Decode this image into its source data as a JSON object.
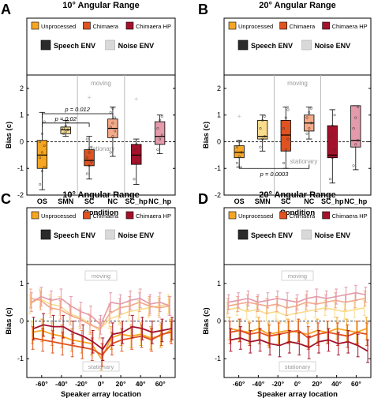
{
  "colors": {
    "unprocessed": "#f5a623",
    "chimaera": "#e0521f",
    "chimaera_hp": "#a3122a",
    "speech_env": "#2b2b2b",
    "noise_env": "#d9d9d9",
    "noise_unprocessed": "#f9dc8c",
    "noise_chimaera": "#f4a988",
    "noise_chimaera_hp": "#e39aaa"
  },
  "legend": {
    "unprocessed": "Unprocessed",
    "chimaera": "Chimaera",
    "chimaera_hp": "Chimaera HP",
    "speech_env": "Speech ENV",
    "noise_env": "Noise ENV"
  },
  "chart_data": [
    {
      "panel_letter": "A",
      "type": "box",
      "title": "10° Angular Range",
      "xlabel": "Condition",
      "ylabel": "Bias (c)",
      "ylim": [
        -2,
        2.5
      ],
      "yticks": [
        "-2",
        "-1",
        "0",
        "1",
        "2"
      ],
      "categories": [
        "OS",
        "SMN",
        "SC",
        "NC",
        "SC_hp",
        "NC_hp"
      ],
      "region_labels": {
        "upper": "moving",
        "lower": "stationary"
      },
      "annotations": [
        "p = 0.012",
        "p = 0.02"
      ],
      "boxes": [
        {
          "category": "OS",
          "whisker_low": -1.8,
          "q1": -1.0,
          "median": -0.5,
          "q3": 0.05,
          "whisker_high": 1.1,
          "env": "speech",
          "processing": "unprocessed",
          "points": [
            -1.6,
            -1.1,
            -0.95,
            -0.6,
            -0.4,
            -0.15,
            0.0,
            0.3,
            0.75
          ],
          "outliers": []
        },
        {
          "category": "SMN",
          "whisker_low": 0.2,
          "q1": 0.3,
          "median": 0.45,
          "q3": 0.55,
          "whisker_high": 0.8,
          "env": "noise",
          "processing": "unprocessed",
          "points": [
            0.3,
            0.38,
            0.45,
            0.5,
            0.6,
            0.75
          ],
          "outliers": []
        },
        {
          "category": "SC",
          "whisker_low": -1.4,
          "q1": -0.9,
          "median": -0.7,
          "q3": -0.3,
          "whisker_high": 0.2,
          "env": "speech",
          "processing": "chimaera",
          "points": [
            -1.2,
            -0.9,
            -0.75,
            -0.6,
            -0.4,
            -0.2,
            0.1
          ],
          "outliers": [
            1.65
          ]
        },
        {
          "category": "NC",
          "whisker_low": -0.55,
          "q1": 0.15,
          "median": 0.5,
          "q3": 0.85,
          "whisker_high": 1.3,
          "env": "noise",
          "processing": "chimaera",
          "points": [
            -0.4,
            0.2,
            0.4,
            0.55,
            0.7,
            0.9,
            1.1,
            1.25
          ],
          "outliers": []
        },
        {
          "category": "SC_hp",
          "whisker_low": -1.6,
          "q1": -0.85,
          "median": -0.5,
          "q3": -0.1,
          "whisker_high": 0.1,
          "env": "speech",
          "processing": "chimaera_hp",
          "points": [
            -1.4,
            -0.8,
            -0.55,
            -0.3,
            -0.1
          ],
          "outliers": [
            1.6
          ]
        },
        {
          "category": "NC_hp",
          "whisker_low": -0.45,
          "q1": -0.1,
          "median": 0.2,
          "q3": 0.75,
          "whisker_high": 1.0,
          "env": "noise",
          "processing": "chimaera_hp",
          "points": [
            -0.3,
            0.1,
            0.25,
            0.5,
            0.8,
            0.95
          ],
          "outliers": []
        }
      ]
    },
    {
      "panel_letter": "B",
      "type": "box",
      "title": "20° Angular Range",
      "xlabel": "Condition",
      "ylabel": "Bias (c)",
      "ylim": [
        -2,
        2.5
      ],
      "yticks": [
        "-2",
        "-1",
        "0",
        "1",
        "2"
      ],
      "categories": [
        "OS",
        "SMN",
        "SC",
        "NC",
        "SC_hp",
        "NC_hp"
      ],
      "region_labels": {
        "upper": "moving",
        "lower": "stationary"
      },
      "annotations": [
        "p = 0.0003"
      ],
      "boxes": [
        {
          "category": "OS",
          "whisker_low": -0.95,
          "q1": -0.6,
          "median": -0.4,
          "q3": -0.15,
          "whisker_high": 0.05,
          "env": "speech",
          "processing": "unprocessed",
          "points": [
            -0.8,
            -0.55,
            -0.4,
            -0.2,
            0.0
          ],
          "outliers": [
            0.95
          ]
        },
        {
          "category": "SMN",
          "whisker_low": -0.35,
          "q1": 0.1,
          "median": 0.2,
          "q3": 0.8,
          "whisker_high": 1.0,
          "env": "noise",
          "processing": "unprocessed",
          "points": [
            -0.2,
            0.1,
            0.2,
            0.5,
            0.8,
            0.95
          ],
          "outliers": []
        },
        {
          "category": "SC",
          "whisker_low": -1.0,
          "q1": -0.35,
          "median": 0.25,
          "q3": 0.8,
          "whisker_high": 1.3,
          "env": "speech",
          "processing": "chimaera",
          "points": [
            -0.8,
            -0.3,
            0.1,
            0.5,
            0.9,
            1.2
          ],
          "outliers": []
        },
        {
          "category": "NC",
          "whisker_low": 0.1,
          "q1": 0.4,
          "median": 0.7,
          "q3": 1.0,
          "whisker_high": 1.3,
          "env": "noise",
          "processing": "chimaera",
          "points": [
            0.3,
            0.5,
            0.7,
            0.9,
            1.1,
            1.25
          ],
          "outliers": []
        },
        {
          "category": "SC_hp",
          "whisker_low": -1.55,
          "q1": -0.6,
          "median": -0.5,
          "q3": 0.6,
          "whisker_high": 1.2,
          "env": "speech",
          "processing": "chimaera_hp",
          "points": [
            -1.4,
            -0.6,
            -0.3,
            0.2,
            0.6,
            1.0
          ],
          "outliers": []
        },
        {
          "category": "NC_hp",
          "whisker_low": -1.05,
          "q1": -0.2,
          "median": 0.05,
          "q3": 1.35,
          "whisker_high": 1.35,
          "env": "noise",
          "processing": "chimaera_hp",
          "points": [
            -0.9,
            -0.1,
            0.05,
            0.5,
            0.9,
            1.3
          ],
          "outliers": []
        }
      ]
    },
    {
      "panel_letter": "C",
      "type": "line",
      "title": "10° Angular Range",
      "xlabel": "Speaker array location",
      "ylabel": "Bias (c)",
      "ylim": [
        -1.5,
        1.5
      ],
      "yticks": [
        "-1",
        "0",
        "1"
      ],
      "x": [
        -70,
        -60,
        -50,
        -40,
        -30,
        -20,
        -10,
        0,
        10,
        20,
        30,
        40,
        50,
        60,
        70
      ],
      "xtick_values": [
        -60,
        -40,
        -20,
        0,
        20,
        40,
        60
      ],
      "xtick_labels": [
        "-60°",
        "-40°",
        "-20°",
        "0°",
        "20°",
        "40°",
        "60°"
      ],
      "region_labels": {
        "upper": "moving",
        "lower": "stationary"
      },
      "series": [
        {
          "env": "noise",
          "processing": "unprocessed",
          "error": 0.25,
          "values": [
            0.45,
            0.6,
            0.45,
            0.4,
            0.2,
            0.1,
            -0.05,
            -0.25,
            0.05,
            0.15,
            0.25,
            0.3,
            0.35,
            0.4,
            0.45
          ]
        },
        {
          "env": "noise",
          "processing": "chimaera",
          "error": 0.25,
          "values": [
            0.6,
            0.55,
            0.35,
            0.3,
            0.15,
            0.05,
            -0.1,
            -0.2,
            0.2,
            0.35,
            0.4,
            0.5,
            0.4,
            0.35,
            0.4
          ]
        },
        {
          "env": "noise",
          "processing": "chimaera_hp",
          "error": 0.25,
          "values": [
            0.5,
            0.65,
            0.55,
            0.6,
            0.4,
            0.25,
            0.15,
            -0.1,
            0.5,
            0.45,
            0.55,
            0.6,
            0.45,
            0.5,
            0.4
          ]
        },
        {
          "env": "speech",
          "processing": "unprocessed",
          "error": 0.3,
          "values": [
            -0.3,
            -0.25,
            -0.35,
            -0.4,
            -0.5,
            -0.55,
            -0.6,
            -1.0,
            -0.45,
            -0.35,
            -0.4,
            -0.35,
            -0.45,
            -0.4,
            -0.25
          ]
        },
        {
          "env": "speech",
          "processing": "chimaera",
          "error": 0.3,
          "values": [
            -0.45,
            -0.5,
            -0.55,
            -0.6,
            -0.65,
            -0.7,
            -0.75,
            -0.9,
            -0.6,
            -0.5,
            -0.45,
            -0.4,
            -0.5,
            -0.35,
            -0.3
          ]
        },
        {
          "env": "speech",
          "processing": "chimaera_hp",
          "error": 0.3,
          "values": [
            -0.2,
            -0.1,
            -0.15,
            -0.15,
            -0.3,
            -0.4,
            -0.55,
            -0.75,
            -0.35,
            -0.3,
            -0.15,
            -0.2,
            -0.3,
            -0.25,
            -0.2
          ]
        }
      ]
    },
    {
      "panel_letter": "D",
      "type": "line",
      "title": "20° Angular Range",
      "xlabel": "Speaker array location",
      "ylabel": "Bias (c)",
      "ylim": [
        -1.5,
        1.5
      ],
      "yticks": [
        "-1",
        "0",
        "1"
      ],
      "x": [
        -70,
        -60,
        -50,
        -40,
        -30,
        -20,
        -10,
        0,
        10,
        20,
        30,
        40,
        50,
        60,
        70
      ],
      "xtick_values": [
        -60,
        -40,
        -20,
        0,
        20,
        40,
        60
      ],
      "xtick_labels": [
        "-60°",
        "-40°",
        "-20°",
        "0°",
        "20°",
        "40°",
        "60°"
      ],
      "region_labels": {
        "upper": "moving",
        "lower": "stationary"
      },
      "series": [
        {
          "env": "noise",
          "processing": "unprocessed",
          "error": 0.2,
          "values": [
            0.3,
            0.35,
            0.25,
            0.3,
            0.2,
            0.25,
            0.15,
            0.2,
            0.25,
            0.3,
            0.35,
            0.3,
            0.25,
            0.3,
            0.35
          ]
        },
        {
          "env": "noise",
          "processing": "chimaera",
          "error": 0.2,
          "values": [
            0.4,
            0.45,
            0.5,
            0.45,
            0.4,
            0.45,
            0.35,
            0.4,
            0.5,
            0.45,
            0.5,
            0.55,
            0.5,
            0.55,
            0.6
          ]
        },
        {
          "env": "noise",
          "processing": "chimaera_hp",
          "error": 0.2,
          "values": [
            0.5,
            0.55,
            0.6,
            0.5,
            0.55,
            0.6,
            0.55,
            0.5,
            0.6,
            0.65,
            0.6,
            0.65,
            0.7,
            0.75,
            0.7
          ]
        },
        {
          "env": "speech",
          "processing": "unprocessed",
          "error": 0.3,
          "values": [
            -0.2,
            -0.25,
            -0.3,
            -0.2,
            -0.35,
            -0.3,
            -0.25,
            -0.3,
            -0.35,
            -0.25,
            -0.3,
            -0.2,
            -0.25,
            -0.3,
            -0.2
          ]
        },
        {
          "env": "speech",
          "processing": "chimaera",
          "error": 0.3,
          "values": [
            -0.3,
            -0.25,
            -0.35,
            -0.3,
            -0.4,
            -0.35,
            -0.3,
            -0.25,
            -0.45,
            -0.35,
            -0.3,
            -0.35,
            -0.4,
            -0.3,
            -0.35
          ]
        },
        {
          "env": "speech",
          "processing": "chimaera_hp",
          "error": 0.3,
          "values": [
            -0.5,
            -0.45,
            -0.55,
            -0.5,
            -0.6,
            -0.65,
            -0.55,
            -0.6,
            -0.7,
            -0.55,
            -0.5,
            -0.6,
            -0.55,
            -0.65,
            -0.8
          ]
        }
      ]
    }
  ]
}
